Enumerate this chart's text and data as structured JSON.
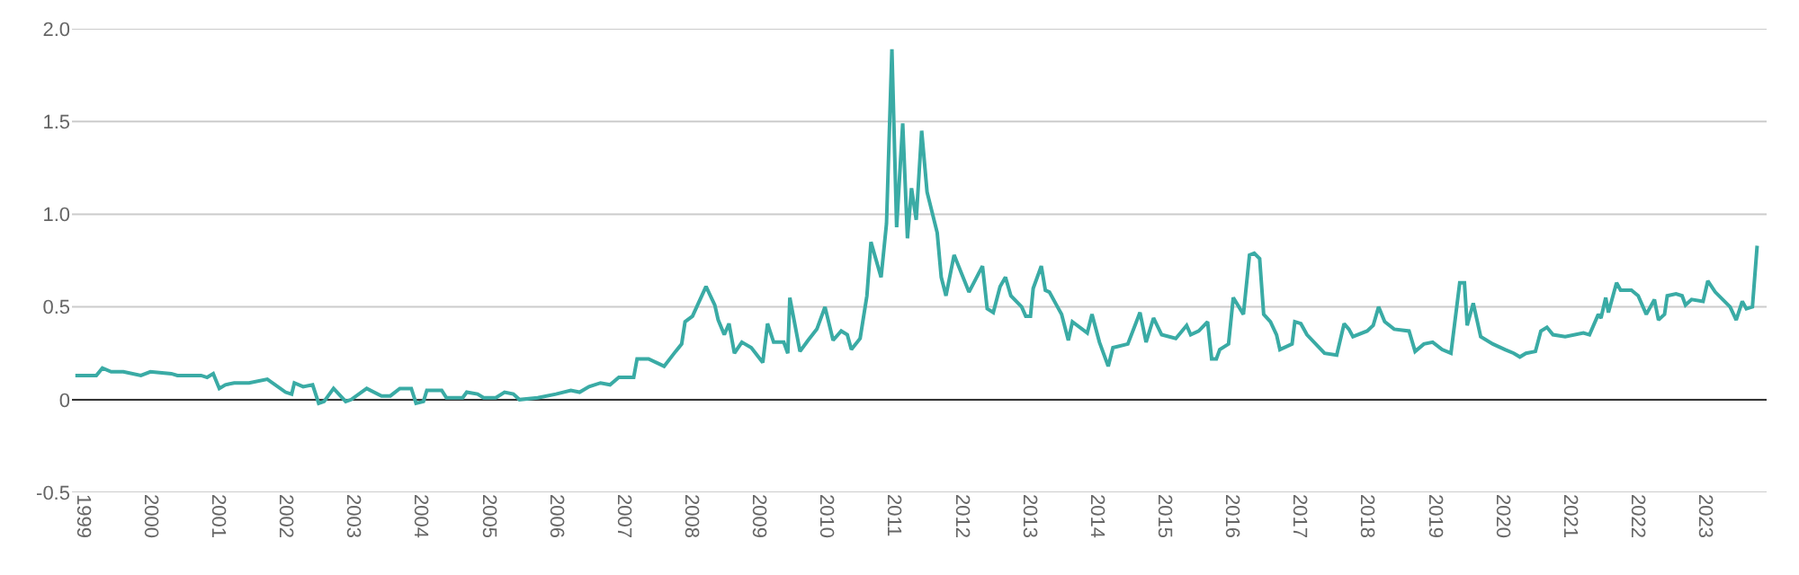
{
  "chart_data": {
    "type": "line",
    "grid": "y",
    "marker": "none",
    "line_style": "solid",
    "xlim": [
      1998.83,
      2023.9
    ],
    "ylim": [
      -0.5,
      2.0
    ],
    "xticks": [
      1999,
      2000,
      2001,
      2002,
      2003,
      2004,
      2005,
      2006,
      2007,
      2008,
      2009,
      2010,
      2011,
      2012,
      2013,
      2014,
      2015,
      2016,
      2017,
      2018,
      2019,
      2020,
      2021,
      2022,
      2023
    ],
    "yticks": [
      {
        "value": -0.5,
        "label": "-0.5"
      },
      0,
      0.5,
      {
        "value": 1.0,
        "label": "1.0"
      },
      1.5,
      {
        "value": 2.0,
        "label": "2.0"
      }
    ],
    "series": [
      {
        "color": "#3aaba5",
        "x": [
          1998.88,
          1999.19,
          1999.28,
          1999.41,
          1999.59,
          1999.85,
          1999.99,
          2000.3,
          2000.39,
          2000.74,
          2000.83,
          2000.92,
          2001.01,
          2001.1,
          2001.23,
          2001.45,
          2001.72,
          2001.99,
          2002.08,
          2002.12,
          2002.25,
          2002.39,
          2002.48,
          2002.56,
          2002.7,
          2002.88,
          2002.96,
          2003.19,
          2003.41,
          2003.54,
          2003.68,
          2003.85,
          2003.92,
          2004.03,
          2004.08,
          2004.3,
          2004.37,
          2004.61,
          2004.67,
          2004.83,
          2004.92,
          2005.1,
          2005.23,
          2005.36,
          2005.45,
          2005.72,
          2005.99,
          2006.21,
          2006.34,
          2006.48,
          2006.65,
          2006.79,
          2006.92,
          2007.14,
          2007.19,
          2007.36,
          2007.59,
          2007.76,
          2007.85,
          2007.9,
          2008.01,
          2008.21,
          2008.34,
          2008.39,
          2008.48,
          2008.55,
          2008.63,
          2008.74,
          2008.88,
          2009.05,
          2009.12,
          2009.21,
          2009.36,
          2009.42,
          2009.45,
          2009.6,
          2009.72,
          2009.85,
          2009.97,
          2010.09,
          2010.21,
          2010.3,
          2010.36,
          2010.49,
          2010.59,
          2010.65,
          2010.8,
          2010.88,
          2010.96,
          2011.03,
          2011.12,
          2011.19,
          2011.25,
          2011.32,
          2011.4,
          2011.48,
          2011.63,
          2011.69,
          2011.76,
          2011.88,
          2012.1,
          2012.3,
          2012.37,
          2012.46,
          2012.56,
          2012.64,
          2012.72,
          2012.88,
          2012.94,
          2013.01,
          2013.05,
          2013.17,
          2013.23,
          2013.29,
          2013.41,
          2013.47,
          2013.57,
          2013.63,
          2013.85,
          2013.92,
          2014.03,
          2014.16,
          2014.23,
          2014.45,
          2014.63,
          2014.72,
          2014.83,
          2014.95,
          2015.16,
          2015.32,
          2015.38,
          2015.5,
          2015.63,
          2015.69,
          2015.76,
          2015.81,
          2015.94,
          2016.01,
          2016.16,
          2016.25,
          2016.32,
          2016.4,
          2016.46,
          2016.56,
          2016.65,
          2016.7,
          2016.88,
          2016.92,
          2017.01,
          2017.1,
          2017.23,
          2017.36,
          2017.54,
          2017.65,
          2017.72,
          2017.78,
          2017.99,
          2018.08,
          2018.16,
          2018.25,
          2018.39,
          2018.61,
          2018.7,
          2018.83,
          2018.96,
          2019.1,
          2019.23,
          2019.36,
          2019.43,
          2019.47,
          2019.56,
          2019.67,
          2019.85,
          2020.03,
          2020.16,
          2020.25,
          2020.34,
          2020.48,
          2020.56,
          2020.65,
          2020.74,
          2020.92,
          2021.19,
          2021.28,
          2021.41,
          2021.45,
          2021.52,
          2021.56,
          2021.68,
          2021.74,
          2021.9,
          2022.0,
          2022.12,
          2022.24,
          2022.3,
          2022.39,
          2022.43,
          2022.56,
          2022.65,
          2022.7,
          2022.79,
          2022.96,
          2023.03,
          2023.14,
          2023.36,
          2023.45,
          2023.54,
          2023.6,
          2023.69,
          2023.76
        ],
        "values": [
          0.13,
          0.13,
          0.17,
          0.15,
          0.15,
          0.13,
          0.15,
          0.14,
          0.13,
          0.13,
          0.12,
          0.14,
          0.06,
          0.08,
          0.09,
          0.09,
          0.11,
          0.04,
          0.03,
          0.09,
          0.07,
          0.08,
          -0.02,
          -0.01,
          0.06,
          -0.01,
          0.0,
          0.06,
          0.02,
          0.02,
          0.06,
          0.06,
          -0.02,
          -0.01,
          0.05,
          0.05,
          0.01,
          0.01,
          0.04,
          0.03,
          0.01,
          0.01,
          0.04,
          0.03,
          0.0,
          0.01,
          0.03,
          0.05,
          0.04,
          0.07,
          0.09,
          0.08,
          0.12,
          0.12,
          0.22,
          0.22,
          0.18,
          0.26,
          0.3,
          0.42,
          0.45,
          0.61,
          0.51,
          0.43,
          0.35,
          0.41,
          0.25,
          0.31,
          0.28,
          0.2,
          0.41,
          0.31,
          0.31,
          0.25,
          0.55,
          0.26,
          0.32,
          0.38,
          0.5,
          0.32,
          0.37,
          0.35,
          0.27,
          0.33,
          0.56,
          0.85,
          0.66,
          0.95,
          1.89,
          0.93,
          1.49,
          0.87,
          1.14,
          0.97,
          1.45,
          1.12,
          0.9,
          0.66,
          0.56,
          0.78,
          0.58,
          0.72,
          0.49,
          0.47,
          0.61,
          0.66,
          0.56,
          0.5,
          0.45,
          0.45,
          0.6,
          0.72,
          0.59,
          0.58,
          0.5,
          0.46,
          0.32,
          0.42,
          0.36,
          0.46,
          0.31,
          0.18,
          0.28,
          0.3,
          0.47,
          0.31,
          0.44,
          0.35,
          0.33,
          0.4,
          0.35,
          0.37,
          0.42,
          0.22,
          0.22,
          0.27,
          0.3,
          0.55,
          0.46,
          0.78,
          0.79,
          0.76,
          0.46,
          0.42,
          0.35,
          0.27,
          0.3,
          0.42,
          0.41,
          0.35,
          0.3,
          0.25,
          0.24,
          0.41,
          0.38,
          0.34,
          0.37,
          0.4,
          0.5,
          0.42,
          0.38,
          0.37,
          0.26,
          0.3,
          0.31,
          0.27,
          0.25,
          0.63,
          0.63,
          0.4,
          0.52,
          0.34,
          0.3,
          0.27,
          0.25,
          0.23,
          0.25,
          0.26,
          0.37,
          0.39,
          0.35,
          0.34,
          0.36,
          0.35,
          0.46,
          0.44,
          0.55,
          0.47,
          0.63,
          0.59,
          0.59,
          0.56,
          0.46,
          0.54,
          0.43,
          0.46,
          0.56,
          0.57,
          0.56,
          0.51,
          0.54,
          0.53,
          0.64,
          0.58,
          0.5,
          0.43,
          0.53,
          0.49,
          0.5,
          0.83
        ]
      }
    ]
  }
}
